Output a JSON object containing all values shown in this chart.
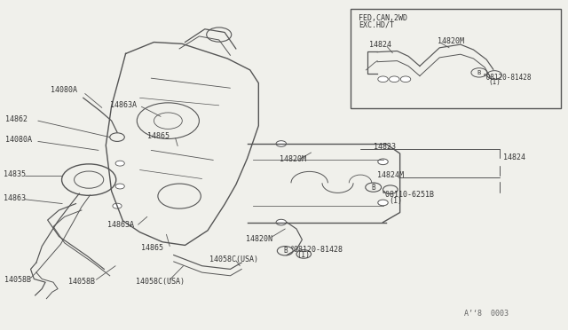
{
  "bg_color": "#f0f0eb",
  "line_color": "#555555",
  "text_color": "#333333",
  "sig_color": "#666666",
  "title_bottom_right": "A'8  0003",
  "inset_label_1": "FED,CAN,2WD",
  "inset_label_2": "EXC.HD/T"
}
